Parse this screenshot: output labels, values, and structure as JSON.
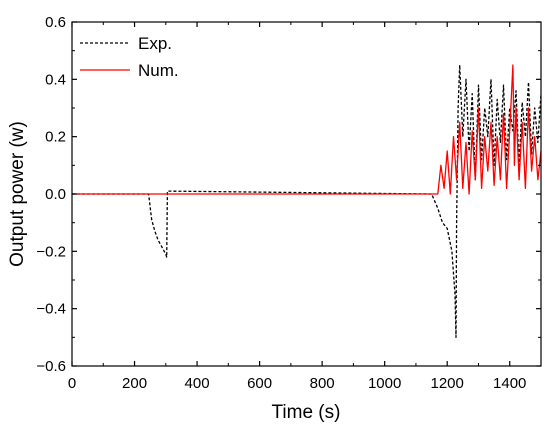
{
  "chart_data": {
    "type": "line",
    "xlabel": "Time (s)",
    "ylabel": "Output power (w)",
    "xlim": [
      0,
      1500
    ],
    "ylim": [
      -0.6,
      0.6
    ],
    "x_ticks": [
      0,
      200,
      400,
      600,
      800,
      1000,
      1200,
      1400
    ],
    "y_ticks": [
      -0.6,
      -0.4,
      -0.2,
      0.0,
      0.2,
      0.4,
      0.6
    ],
    "y_tick_labels": [
      "−0.6",
      "−0.4",
      "−0.2",
      "0.0",
      "0.2",
      "0.4",
      "0.6"
    ],
    "grid": false,
    "legend_position": "top-left",
    "series": [
      {
        "name": "Exp.",
        "color": "#000000",
        "style": "dashed",
        "x": [
          0,
          245,
          255,
          265,
          275,
          285,
          295,
          300,
          303,
          305,
          1150,
          1170,
          1185,
          1200,
          1215,
          1225,
          1228,
          1230,
          1235,
          1240,
          1250,
          1260,
          1270,
          1280,
          1290,
          1300,
          1310,
          1320,
          1330,
          1340,
          1350,
          1360,
          1370,
          1380,
          1390,
          1400,
          1410,
          1420,
          1430,
          1440,
          1450,
          1460,
          1470,
          1480,
          1490,
          1500
        ],
        "y": [
          0.0,
          0.0,
          -0.09,
          -0.13,
          -0.16,
          -0.18,
          -0.2,
          -0.21,
          -0.22,
          0.01,
          0.0,
          -0.05,
          -0.1,
          -0.12,
          -0.2,
          -0.35,
          -0.5,
          -0.1,
          0.3,
          0.45,
          0.2,
          0.4,
          0.15,
          0.35,
          0.05,
          0.38,
          0.12,
          0.3,
          0.2,
          0.4,
          0.1,
          0.33,
          0.18,
          0.38,
          0.12,
          0.3,
          0.22,
          0.36,
          0.1,
          0.32,
          0.2,
          0.39,
          0.14,
          0.3,
          0.18,
          0.35
        ]
      },
      {
        "name": "Num.",
        "color": "#ff0000",
        "style": "solid",
        "x": [
          0,
          1170,
          1180,
          1190,
          1200,
          1210,
          1220,
          1230,
          1240,
          1250,
          1260,
          1270,
          1280,
          1290,
          1300,
          1310,
          1320,
          1330,
          1340,
          1350,
          1360,
          1370,
          1380,
          1390,
          1400,
          1410,
          1415,
          1420,
          1430,
          1440,
          1450,
          1460,
          1470,
          1480,
          1490,
          1500
        ],
        "y": [
          0.0,
          0.0,
          0.1,
          0.02,
          0.15,
          0.0,
          0.2,
          0.05,
          0.25,
          0.02,
          0.18,
          0.0,
          0.22,
          0.05,
          0.3,
          0.02,
          0.2,
          0.08,
          0.25,
          0.03,
          0.2,
          0.05,
          0.28,
          0.02,
          0.22,
          0.45,
          0.1,
          0.3,
          0.05,
          0.25,
          0.02,
          0.3,
          0.08,
          0.2,
          0.05,
          0.15
        ]
      }
    ]
  }
}
